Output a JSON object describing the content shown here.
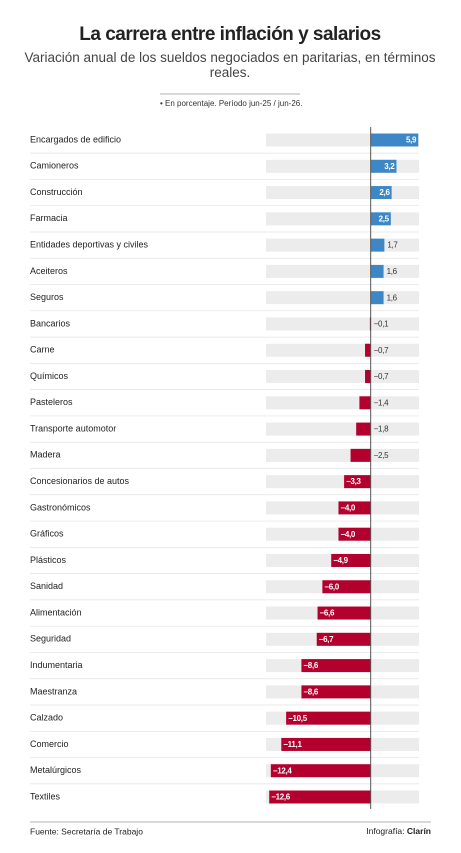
{
  "chart_data": {
    "type": "bar",
    "orientation": "horizontal",
    "title": "La carrera entre inflación y salarios",
    "subtitle": "Variación anual de los sueldos negociados en paritarias, en términos reales.",
    "note": "• En porcentaje. Período jun-25 / jun-26.",
    "categories": [
      "Encargados de edificio",
      "Camioneros",
      "Construcción",
      "Farmacia",
      "Entidades deportivas y civiles",
      "Aceiteros",
      "Seguros",
      "Bancarios",
      "Carne",
      "Químicos",
      "Pasteleros",
      "Transporte automotor",
      "Madera",
      "Concesionarios de autos",
      "Gastronómicos",
      "Gráficos",
      "Plásticos",
      "Sanidad",
      "Alimentación",
      "Seguridad",
      "Indumentaria",
      "Maestranza",
      "Calzado",
      "Comercio",
      "Metalúrgicos",
      "Textiles"
    ],
    "values": [
      5.9,
      3.2,
      2.6,
      2.5,
      1.7,
      1.6,
      1.6,
      -0.1,
      -0.7,
      -0.7,
      -1.4,
      -1.8,
      -2.5,
      -3.3,
      -4.0,
      -4.0,
      -4.9,
      -6.0,
      -6.6,
      -6.7,
      -8.6,
      -8.6,
      -10.5,
      -11.1,
      -12.4,
      -12.6
    ],
    "value_labels": [
      "5,9",
      "3,2",
      "2,6",
      "2,5",
      "1,7",
      "1,6",
      "1,6",
      "−0,1",
      "−0,7",
      "−0,7",
      "−1,4",
      "−1,8",
      "−2,5",
      "−3,3",
      "−4,0",
      "−4,0",
      "−4,9",
      "−6,0",
      "−6,6",
      "−6,7",
      "−8,6",
      "−8,6",
      "−10,5",
      "−11,1",
      "−12,4",
      "−12,6"
    ],
    "positive_color": "#3d87c7",
    "negative_color": "#b3002d",
    "xlim": [
      -13,
      6
    ],
    "source": "Fuente: Secretaría de Trabajo",
    "credit_label": "Infografía:",
    "credit_brand": "Clarín"
  }
}
